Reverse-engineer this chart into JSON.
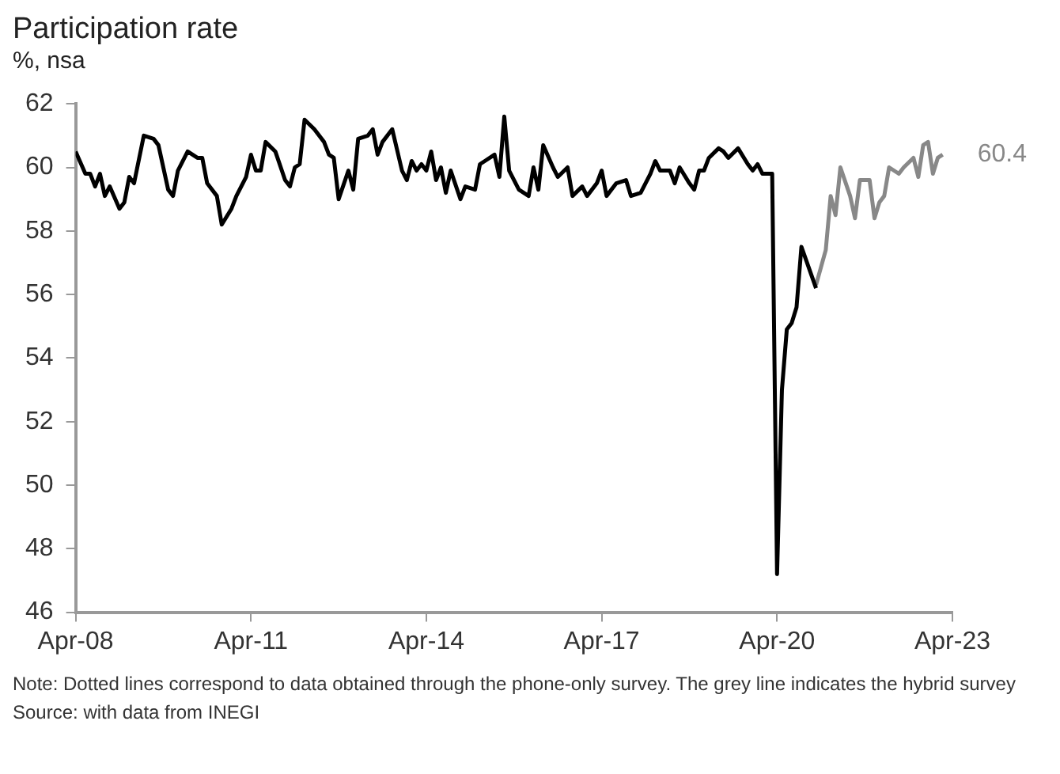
{
  "chart_data": {
    "type": "line",
    "title": "Participation rate",
    "subtitle": "%, nsa",
    "xlim": [
      "2008-04",
      "2023-04"
    ],
    "xticks": [
      {
        "value": "2008-04",
        "label": "Apr-08"
      },
      {
        "value": "2011-04",
        "label": "Apr-11"
      },
      {
        "value": "2014-04",
        "label": "Apr-14"
      },
      {
        "value": "2017-04",
        "label": "Apr-17"
      },
      {
        "value": "2020-04",
        "label": "Apr-20"
      },
      {
        "value": "2023-04",
        "label": "Apr-23"
      }
    ],
    "ylim": [
      46,
      62
    ],
    "yticks": [
      46,
      48,
      50,
      52,
      54,
      56,
      58,
      60,
      62
    ],
    "grid": false,
    "legend": false,
    "series": [
      {
        "color": "#000000",
        "x": [
          "2008-04",
          "2008-06",
          "2008-07",
          "2008-08",
          "2008-09",
          "2008-10",
          "2008-11",
          "2009-01",
          "2009-02",
          "2009-03",
          "2009-04",
          "2009-06",
          "2009-08",
          "2009-09",
          "2009-11",
          "2009-12",
          "2010-01",
          "2010-03",
          "2010-05",
          "2010-06",
          "2010-07",
          "2010-09",
          "2010-10",
          "2010-12",
          "2011-01",
          "2011-03",
          "2011-04",
          "2011-05",
          "2011-06",
          "2011-07",
          "2011-09",
          "2011-11",
          "2011-12",
          "2012-01",
          "2012-02",
          "2012-03",
          "2012-05",
          "2012-07",
          "2012-08",
          "2012-09",
          "2012-10",
          "2012-12",
          "2013-01",
          "2013-02",
          "2013-04",
          "2013-05",
          "2013-06",
          "2013-07",
          "2013-09",
          "2013-11",
          "2013-12",
          "2014-01",
          "2014-02",
          "2014-03",
          "2014-04",
          "2014-05",
          "2014-06",
          "2014-07",
          "2014-08",
          "2014-09",
          "2014-11",
          "2014-12",
          "2015-02",
          "2015-03",
          "2015-04",
          "2015-06",
          "2015-07",
          "2015-08",
          "2015-09",
          "2015-11",
          "2016-01",
          "2016-02",
          "2016-03",
          "2016-04",
          "2016-06",
          "2016-07",
          "2016-09",
          "2016-10",
          "2016-12",
          "2017-01",
          "2017-03",
          "2017-04",
          "2017-05",
          "2017-07",
          "2017-09",
          "2017-10",
          "2017-12",
          "2018-02",
          "2018-03",
          "2018-04",
          "2018-06",
          "2018-07",
          "2018-08",
          "2018-10",
          "2018-11",
          "2018-12",
          "2019-01",
          "2019-02",
          "2019-04",
          "2019-05",
          "2019-06",
          "2019-08",
          "2019-10",
          "2019-11",
          "2019-12",
          "2020-01",
          "2020-03",
          "2020-04",
          "2020-05",
          "2020-06",
          "2020-07",
          "2020-08",
          "2020-09",
          "2020-12"
        ],
        "values": [
          60.5,
          59.8,
          59.8,
          59.4,
          59.8,
          59.1,
          59.4,
          58.7,
          58.9,
          59.7,
          59.5,
          61.0,
          60.9,
          60.7,
          59.3,
          59.1,
          59.9,
          60.5,
          60.3,
          60.3,
          59.5,
          59.1,
          58.2,
          58.7,
          59.1,
          59.7,
          60.4,
          59.9,
          59.9,
          60.8,
          60.5,
          59.6,
          59.4,
          60.0,
          60.1,
          61.5,
          61.2,
          60.8,
          60.4,
          60.3,
          59.0,
          59.9,
          59.3,
          60.9,
          61.0,
          61.2,
          60.4,
          60.8,
          61.2,
          59.9,
          59.6,
          60.2,
          59.9,
          60.1,
          59.9,
          60.5,
          59.6,
          60.0,
          59.2,
          59.9,
          59.0,
          59.4,
          59.3,
          60.1,
          60.2,
          60.4,
          59.7,
          61.6,
          59.9,
          59.3,
          59.1,
          60.0,
          59.3,
          60.7,
          60.0,
          59.7,
          60.0,
          59.1,
          59.4,
          59.1,
          59.5,
          59.9,
          59.1,
          59.5,
          59.6,
          59.1,
          59.2,
          59.8,
          60.2,
          59.9,
          59.9,
          59.5,
          60.0,
          59.5,
          59.3,
          59.9,
          59.9,
          60.3,
          60.6,
          60.5,
          60.3,
          60.6,
          60.1,
          59.9,
          60.1,
          59.8,
          59.8,
          47.2,
          53.0,
          54.9,
          55.1,
          55.6,
          57.5,
          56.2
        ]
      },
      {
        "color": "#888888",
        "x": [
          "2020-12",
          "2021-02",
          "2021-03",
          "2021-04",
          "2021-05",
          "2021-07",
          "2021-08",
          "2021-09",
          "2021-11",
          "2021-12",
          "2022-01",
          "2022-02",
          "2022-03",
          "2022-05",
          "2022-06",
          "2022-08",
          "2022-09",
          "2022-10",
          "2022-11",
          "2022-12",
          "2023-01",
          "2023-02"
        ],
        "values": [
          56.3,
          57.4,
          59.1,
          58.5,
          60.0,
          59.1,
          58.4,
          59.6,
          59.6,
          58.4,
          58.9,
          59.1,
          60.0,
          59.8,
          60.0,
          60.3,
          59.7,
          60.7,
          60.8,
          59.8,
          60.3,
          60.4
        ]
      }
    ],
    "annotations": [
      {
        "text": "60.4",
        "x": "2023-02",
        "y": 60.4
      },
      "Note: Dotted lines correspond to data obtained through the phone-only survey. The grey line indicates the hybrid survey",
      "Source: with data from INEGI"
    ]
  }
}
